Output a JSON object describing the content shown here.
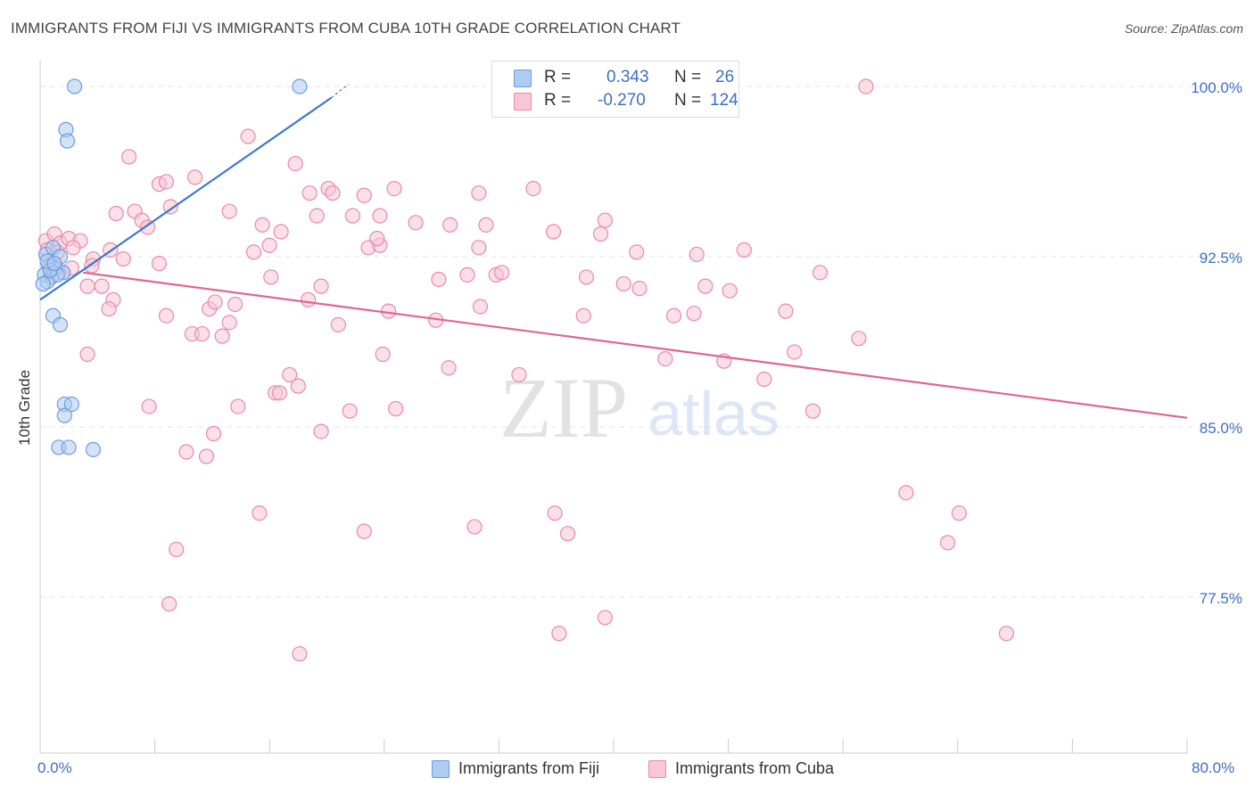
{
  "title": "IMMIGRANTS FROM FIJI VS IMMIGRANTS FROM CUBA 10TH GRADE CORRELATION CHART",
  "source": "Source: ZipAtlas.com",
  "watermark": {
    "zip": "ZIP",
    "atlas": "atlas"
  },
  "legend": {
    "fiji": {
      "r_label": "R =",
      "r_value": "0.343",
      "n_label": "N =",
      "n_value": "26"
    },
    "cuba": {
      "r_label": "R =",
      "r_value": "-0.270",
      "n_label": "N =",
      "n_value": "124"
    }
  },
  "colors": {
    "fiji_fill": "#aecbf0",
    "fiji_stroke": "#6a9ee0",
    "fiji_line": "#3a78cf",
    "cuba_fill": "#f8c6d6",
    "cuba_stroke": "#e88aa8",
    "cuba_line": "#e0668f",
    "grid": "#e4e4e4",
    "axis_text": "#3d6fc2"
  },
  "chart_data": {
    "type": "scatter",
    "title": "IMMIGRANTS FROM FIJI VS IMMIGRANTS FROM CUBA 10TH GRADE CORRELATION CHART",
    "xlabel": "",
    "ylabel": "10th Grade",
    "xlim": [
      0,
      80
    ],
    "ylim": [
      71.5,
      100.8
    ],
    "x_tick_labels": [
      "0.0%",
      "80.0%"
    ],
    "y_ticks": [
      77.5,
      85.0,
      92.5,
      100.0
    ],
    "y_tick_labels": [
      "77.5%",
      "85.0%",
      "92.5%",
      "100.0%"
    ],
    "legend_position": "top-center",
    "series": [
      {
        "name": "Immigrants from Fiji",
        "r": 0.343,
        "n": 26,
        "trend": {
          "x": [
            0,
            20.3
          ],
          "y": [
            90.6,
            99.5
          ],
          "dashed_to": [
            21.5,
            100.1
          ]
        },
        "points": [
          [
            2.4,
            100.0
          ],
          [
            18.1,
            100.0
          ],
          [
            1.8,
            98.1
          ],
          [
            1.9,
            97.6
          ],
          [
            0.4,
            92.6
          ],
          [
            0.9,
            92.9
          ],
          [
            1.4,
            92.5
          ],
          [
            0.6,
            92.1
          ],
          [
            1.1,
            92.0
          ],
          [
            1.6,
            91.8
          ],
          [
            0.3,
            91.7
          ],
          [
            0.8,
            91.6
          ],
          [
            1.2,
            91.7
          ],
          [
            0.5,
            91.4
          ],
          [
            0.2,
            91.3
          ],
          [
            0.7,
            91.9
          ],
          [
            0.9,
            89.9
          ],
          [
            1.4,
            89.5
          ],
          [
            1.7,
            86.0
          ],
          [
            2.2,
            86.0
          ],
          [
            1.7,
            85.5
          ],
          [
            1.3,
            84.1
          ],
          [
            2.0,
            84.1
          ],
          [
            3.7,
            84.0
          ],
          [
            0.5,
            92.3
          ],
          [
            1.0,
            92.2
          ]
        ]
      },
      {
        "name": "Immigrants from Cuba",
        "r": -0.27,
        "n": 124,
        "trend": {
          "x": [
            3.0,
            80.0
          ],
          "y": [
            91.8,
            85.4
          ]
        },
        "points": [
          [
            57.6,
            100.0
          ],
          [
            14.5,
            97.8
          ],
          [
            6.2,
            96.9
          ],
          [
            17.8,
            96.6
          ],
          [
            8.3,
            95.7
          ],
          [
            8.8,
            95.8
          ],
          [
            10.8,
            96.0
          ],
          [
            18.8,
            95.3
          ],
          [
            20.1,
            95.5
          ],
          [
            20.4,
            95.3
          ],
          [
            22.6,
            95.2
          ],
          [
            24.7,
            95.5
          ],
          [
            5.3,
            94.4
          ],
          [
            6.6,
            94.5
          ],
          [
            7.1,
            94.1
          ],
          [
            7.5,
            93.8
          ],
          [
            9.1,
            94.7
          ],
          [
            13.2,
            94.5
          ],
          [
            15.5,
            93.9
          ],
          [
            16.8,
            93.6
          ],
          [
            19.3,
            94.3
          ],
          [
            21.8,
            94.3
          ],
          [
            23.7,
            94.3
          ],
          [
            26.2,
            94.0
          ],
          [
            28.6,
            93.9
          ],
          [
            30.6,
            95.3
          ],
          [
            31.1,
            93.9
          ],
          [
            34.4,
            95.5
          ],
          [
            35.8,
            93.6
          ],
          [
            39.4,
            94.1
          ],
          [
            39.1,
            93.5
          ],
          [
            0.4,
            93.2
          ],
          [
            1.0,
            93.5
          ],
          [
            1.4,
            93.1
          ],
          [
            2.0,
            93.3
          ],
          [
            2.8,
            93.2
          ],
          [
            0.5,
            92.8
          ],
          [
            1.2,
            92.7
          ],
          [
            2.3,
            92.9
          ],
          [
            3.7,
            92.4
          ],
          [
            4.9,
            92.8
          ],
          [
            5.8,
            92.4
          ],
          [
            8.3,
            92.2
          ],
          [
            14.9,
            92.7
          ],
          [
            16.0,
            93.0
          ],
          [
            22.9,
            92.9
          ],
          [
            23.7,
            93.0
          ],
          [
            23.5,
            93.3
          ],
          [
            30.6,
            92.9
          ],
          [
            41.6,
            92.7
          ],
          [
            45.8,
            92.6
          ],
          [
            49.1,
            92.8
          ],
          [
            0.8,
            92.1
          ],
          [
            1.6,
            91.8
          ],
          [
            2.2,
            92.0
          ],
          [
            3.3,
            91.2
          ],
          [
            3.6,
            92.1
          ],
          [
            4.3,
            91.2
          ],
          [
            5.1,
            90.6
          ],
          [
            16.1,
            91.6
          ],
          [
            19.6,
            91.2
          ],
          [
            27.8,
            91.5
          ],
          [
            29.8,
            91.7
          ],
          [
            31.8,
            91.7
          ],
          [
            32.2,
            91.8
          ],
          [
            38.1,
            91.6
          ],
          [
            40.7,
            91.3
          ],
          [
            41.8,
            91.1
          ],
          [
            46.4,
            91.2
          ],
          [
            48.1,
            91.0
          ],
          [
            54.4,
            91.8
          ],
          [
            4.8,
            90.2
          ],
          [
            8.8,
            89.9
          ],
          [
            11.8,
            90.2
          ],
          [
            12.2,
            90.5
          ],
          [
            13.6,
            90.4
          ],
          [
            18.7,
            90.6
          ],
          [
            24.3,
            90.1
          ],
          [
            27.6,
            89.7
          ],
          [
            30.7,
            90.3
          ],
          [
            37.9,
            89.9
          ],
          [
            44.2,
            89.9
          ],
          [
            45.6,
            90.0
          ],
          [
            52.0,
            90.1
          ],
          [
            10.6,
            89.1
          ],
          [
            11.3,
            89.1
          ],
          [
            12.7,
            89.0
          ],
          [
            13.2,
            89.6
          ],
          [
            20.8,
            89.5
          ],
          [
            57.1,
            88.9
          ],
          [
            3.3,
            88.2
          ],
          [
            23.9,
            88.2
          ],
          [
            43.6,
            88.0
          ],
          [
            47.7,
            87.9
          ],
          [
            52.6,
            88.3
          ],
          [
            17.4,
            87.3
          ],
          [
            28.5,
            87.6
          ],
          [
            33.4,
            87.3
          ],
          [
            50.5,
            87.1
          ],
          [
            7.6,
            85.9
          ],
          [
            13.8,
            85.9
          ],
          [
            16.4,
            86.5
          ],
          [
            16.7,
            86.5
          ],
          [
            18.0,
            86.8
          ],
          [
            21.6,
            85.7
          ],
          [
            24.8,
            85.8
          ],
          [
            53.9,
            85.7
          ],
          [
            12.1,
            84.7
          ],
          [
            19.6,
            84.8
          ],
          [
            10.2,
            83.9
          ],
          [
            11.6,
            83.7
          ],
          [
            60.4,
            82.1
          ],
          [
            15.3,
            81.2
          ],
          [
            22.6,
            80.4
          ],
          [
            30.3,
            80.6
          ],
          [
            35.9,
            81.2
          ],
          [
            36.8,
            80.3
          ],
          [
            64.1,
            81.2
          ],
          [
            63.3,
            79.9
          ],
          [
            9.5,
            79.6
          ],
          [
            9.0,
            77.2
          ],
          [
            36.2,
            75.9
          ],
          [
            39.4,
            76.6
          ],
          [
            18.1,
            75.0
          ],
          [
            67.4,
            75.9
          ]
        ]
      }
    ]
  }
}
